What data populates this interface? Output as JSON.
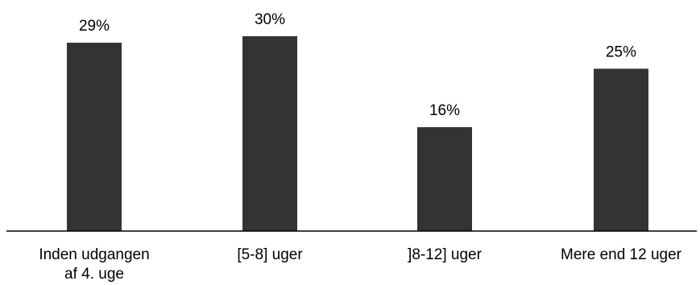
{
  "chart_data": {
    "type": "bar",
    "categories": [
      "Inden udgangen af 4. uge",
      "[5-8] uger",
      "]8-12] uger",
      "Mere end 12 uger"
    ],
    "category_lines": [
      [
        "Inden udgangen",
        "af 4. uge"
      ],
      [
        "[5-8] uger"
      ],
      [
        "]8-12] uger"
      ],
      [
        "Mere end 12 uger"
      ]
    ],
    "values": [
      29,
      30,
      16,
      25
    ],
    "value_labels": [
      "29%",
      "30%",
      "16%",
      "25%"
    ],
    "title": "",
    "xlabel": "",
    "ylabel": "",
    "ylim": [
      0,
      30
    ],
    "grid": false,
    "legend": "none",
    "bar_color": "#333333",
    "axis_color": "#000000"
  }
}
